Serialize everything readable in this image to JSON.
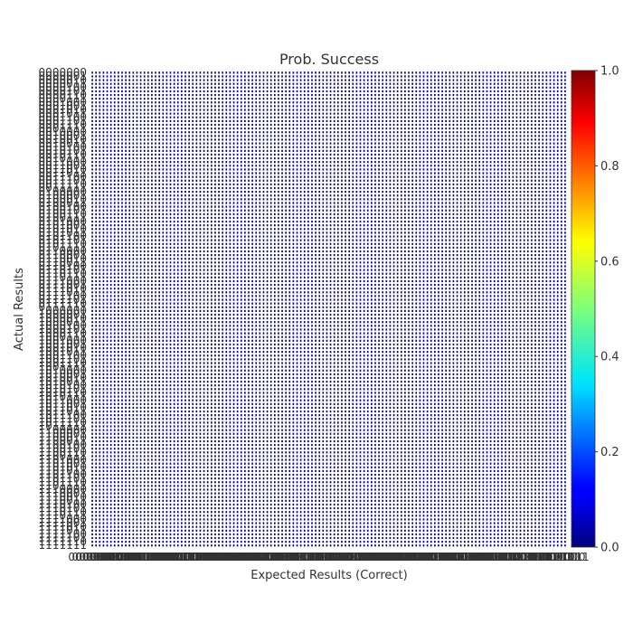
{
  "chart_data": {
    "type": "heatmap",
    "title": "Prob. Success",
    "xlabel": "Expected Results (Correct)",
    "ylabel": "Actual Results",
    "bits": 7,
    "categories": [
      "0000000",
      "0000001",
      "0000010",
      "0000011",
      "0000100",
      "0000101",
      "0000110",
      "0000111",
      "0001000",
      "0001001",
      "0001010",
      "0001011",
      "0001100",
      "0001101",
      "0001110",
      "0001111",
      "0010000",
      "0010001",
      "0010010",
      "0010011",
      "0010100",
      "0010101",
      "0010110",
      "0010111",
      "0011000",
      "0011001",
      "0011010",
      "0011011",
      "0011100",
      "0011101",
      "0011110",
      "0011111",
      "0100000",
      "0100001",
      "0100010",
      "0100011",
      "0100100",
      "0100101",
      "0100110",
      "0100111",
      "0101000",
      "0101001",
      "0101010",
      "0101011",
      "0101100",
      "0101101",
      "0101110",
      "0101111",
      "0110000",
      "0110001",
      "0110010",
      "0110011",
      "0110100",
      "0110101",
      "0110110",
      "0110111",
      "0111000",
      "0111001",
      "0111010",
      "0111011",
      "0111100",
      "0111101",
      "0111110",
      "0111111",
      "1000000",
      "1000001",
      "1000010",
      "1000011",
      "1000100",
      "1000101",
      "1000110",
      "1000111",
      "1001000",
      "1001001",
      "1001010",
      "1001011",
      "1001100",
      "1001101",
      "1001110",
      "1001111",
      "1010000",
      "1010001",
      "1010010",
      "1010011",
      "1010100",
      "1010101",
      "1010110",
      "1010111",
      "1011000",
      "1011001",
      "1011010",
      "1011011",
      "1011100",
      "1011101",
      "1011110",
      "1011111",
      "1100000",
      "1100001",
      "1100010",
      "1100011",
      "1100100",
      "1100101",
      "1100110",
      "1100111",
      "1101000",
      "1101001",
      "1101010",
      "1101011",
      "1101100",
      "1101101",
      "1101110",
      "1101111",
      "1110000",
      "1110001",
      "1110010",
      "1110011",
      "1110100",
      "1110101",
      "1110110",
      "1110111",
      "1111000",
      "1111001",
      "1111010",
      "1111011",
      "1111100",
      "1111101",
      "1111110",
      "1111111"
    ],
    "values": "all cells approximately 0.0 (near-zero success probability across the 128x128 matrix)",
    "value_fill": 0.0,
    "colormap": "jet",
    "colorbar": {
      "min": 0.0,
      "max": 1.0,
      "ticks": [
        "0.0",
        "0.2",
        "0.4",
        "0.6",
        "0.8",
        "1.0"
      ]
    },
    "grid": true,
    "colors": {
      "low": "#00007f",
      "grid": "#ffffff"
    }
  }
}
